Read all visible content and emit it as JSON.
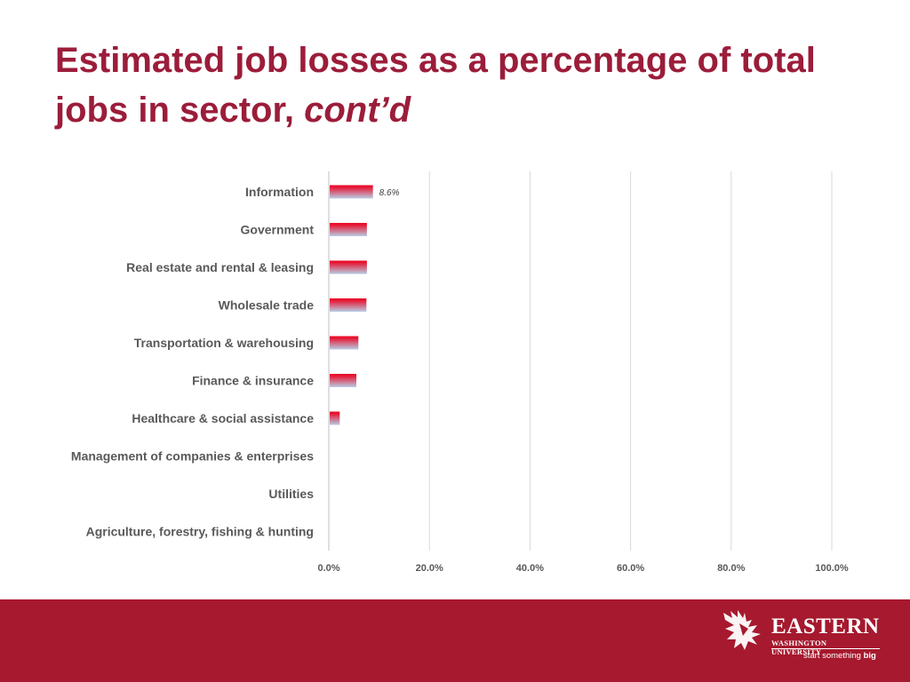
{
  "slide": {
    "title_main": "Estimated job losses as a percentage of total jobs in sector, ",
    "title_emphasis": "cont’d"
  },
  "chart_data": {
    "type": "bar",
    "orientation": "horizontal",
    "categories": [
      "Information",
      "Government",
      "Real estate and rental & leasing",
      "Wholesale trade",
      "Transportation & warehousing",
      "Finance & insurance",
      "Healthcare & social assistance",
      "Management of companies & enterprises",
      "Utilities",
      "Agriculture, forestry, fishing & hunting"
    ],
    "values": [
      8.6,
      7.4,
      7.4,
      7.3,
      5.7,
      5.3,
      2.0,
      0,
      0,
      0
    ],
    "data_labels": [
      {
        "category": "Information",
        "text": "8.6%"
      }
    ],
    "xlim": [
      0,
      100
    ],
    "x_ticks": [
      "0.0%",
      "20.0%",
      "40.0%",
      "60.0%",
      "80.0%",
      "100.0%"
    ],
    "gridlines": true,
    "legend": "none",
    "bar_colors": {
      "top": "#e8112d",
      "bottom": "#b9cde5"
    }
  },
  "footer": {
    "brand_name": "EASTERN",
    "brand_sub": "WASHINGTON UNIVERSITY",
    "tagline_prefix": "start something ",
    "tagline_bold": "big",
    "band_color": "#a6192e"
  }
}
